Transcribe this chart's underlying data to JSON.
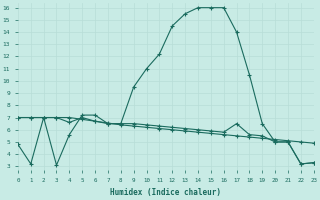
{
  "xlabel": "Humidex (Indice chaleur)",
  "bg_color": "#c8ebe5",
  "line_color": "#1a6b5e",
  "line1_x": [
    0,
    1,
    2,
    3,
    4,
    5,
    6,
    7,
    8,
    9,
    10,
    11,
    12,
    13,
    14,
    15,
    16,
    17,
    18,
    19,
    20,
    21,
    22,
    23
  ],
  "line1_y": [
    4.8,
    3.2,
    7.0,
    3.1,
    5.6,
    7.2,
    7.2,
    6.5,
    6.5,
    9.5,
    11.0,
    12.2,
    14.5,
    15.5,
    16.0,
    16.0,
    16.0,
    14.0,
    10.5,
    6.5,
    5.0,
    5.0,
    3.2,
    3.3
  ],
  "line2_x": [
    0,
    1,
    2,
    3,
    4,
    5,
    6,
    7,
    8,
    9,
    10,
    11,
    12,
    13,
    14,
    15,
    16,
    17,
    18,
    19,
    20,
    21,
    22,
    23
  ],
  "line2_y": [
    7.0,
    7.0,
    7.0,
    7.0,
    6.6,
    7.0,
    6.7,
    6.5,
    6.5,
    6.5,
    6.4,
    6.3,
    6.2,
    6.1,
    6.0,
    5.9,
    5.8,
    6.5,
    5.6,
    5.5,
    5.0,
    5.0,
    3.2,
    3.3
  ],
  "line3_x": [
    0,
    1,
    2,
    3,
    4,
    5,
    6,
    7,
    8,
    9,
    10,
    11,
    12,
    13,
    14,
    15,
    16,
    17,
    18,
    19,
    20,
    21,
    22,
    23
  ],
  "line3_y": [
    7.0,
    7.0,
    7.0,
    7.0,
    7.0,
    6.85,
    6.7,
    6.55,
    6.4,
    6.3,
    6.2,
    6.1,
    6.0,
    5.9,
    5.8,
    5.7,
    5.6,
    5.5,
    5.4,
    5.3,
    5.2,
    5.1,
    5.0,
    4.9
  ],
  "xlim": [
    0,
    23
  ],
  "ylim": [
    2.7,
    16.4
  ],
  "yticks": [
    3,
    4,
    5,
    6,
    7,
    8,
    9,
    10,
    11,
    12,
    13,
    14,
    15,
    16
  ],
  "xticks": [
    0,
    1,
    2,
    3,
    4,
    5,
    6,
    7,
    8,
    9,
    10,
    11,
    12,
    13,
    14,
    15,
    16,
    17,
    18,
    19,
    20,
    21,
    22,
    23
  ],
  "grid_color": "#b8ddd7",
  "marker": "+",
  "markersize": 3.5,
  "linewidth": 0.8
}
